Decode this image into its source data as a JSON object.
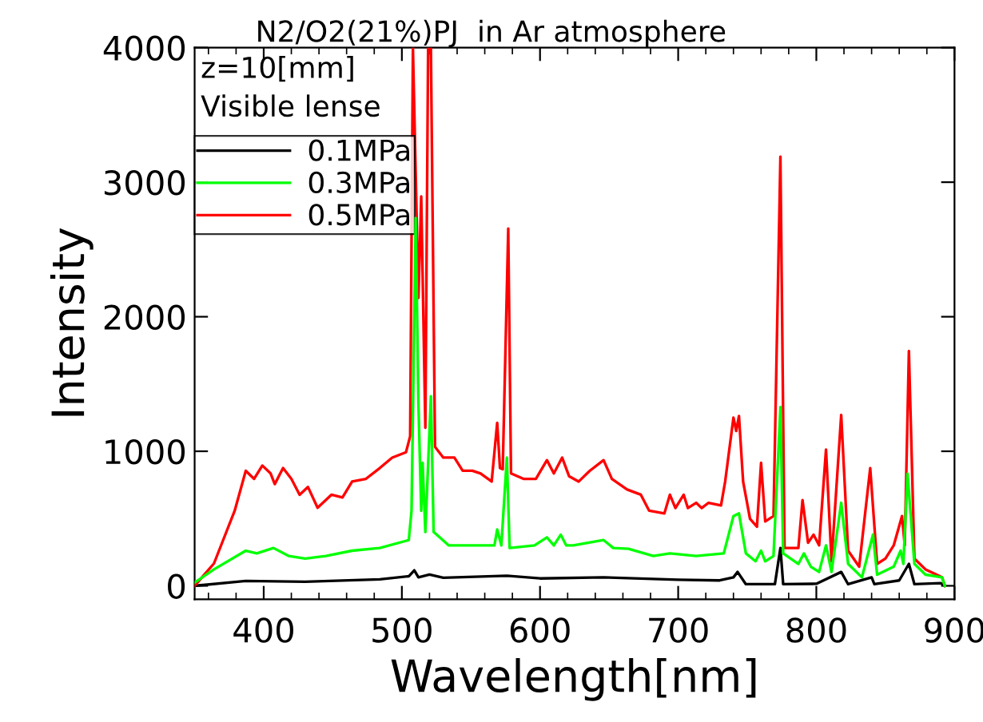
{
  "chart_data": {
    "type": "line",
    "title": "N2/O2(21%)PJ  in Ar atmosphere",
    "xlabel": "Wavelength[nm]",
    "ylabel": "Intensity",
    "annotations": [
      "z=10[mm]",
      "Visible lense"
    ],
    "xlim": [
      350,
      900
    ],
    "ylim": [
      -100,
      4000
    ],
    "xticks": [
      400,
      500,
      600,
      700,
      800,
      900
    ],
    "yticks": [
      0,
      1000,
      2000,
      3000,
      4000
    ],
    "grid": false,
    "legend": "top left",
    "marker": "none",
    "line_style": "solid",
    "series": [
      {
        "name": "0.1MPa",
        "color": "#000000",
        "x": [
          350,
          387,
          430,
          484,
          505,
          509,
          512,
          520,
          530,
          576,
          600,
          646,
          700,
          730,
          740,
          743,
          749,
          770,
          774,
          776,
          800,
          818,
          823,
          840,
          842,
          860,
          867,
          871,
          890,
          893
        ],
        "values": [
          0,
          36,
          30,
          48,
          71,
          115,
          63,
          83,
          60,
          75,
          55,
          63,
          45,
          40,
          63,
          103,
          12,
          12,
          281,
          12,
          15,
          103,
          12,
          63,
          12,
          40,
          163,
          12,
          20,
          0
        ]
      },
      {
        "name": "0.3MPa",
        "color": "#00ff00",
        "x": [
          350,
          364,
          387,
          395,
          407,
          418,
          430,
          445,
          464,
          484,
          505,
          507,
          510,
          512,
          514,
          515,
          517,
          521,
          523,
          534,
          553,
          567,
          569,
          572,
          576,
          578,
          596,
          605,
          610,
          615,
          619,
          624,
          646,
          653,
          664,
          682,
          694,
          713,
          733,
          740,
          744,
          749,
          756,
          760,
          763,
          769,
          774,
          776,
          787,
          791,
          796,
          802,
          807,
          811,
          818,
          823,
          833,
          841,
          844,
          856,
          861,
          863,
          866,
          871,
          879,
          891,
          893
        ],
        "values": [
          24,
          122,
          261,
          241,
          281,
          222,
          202,
          222,
          261,
          281,
          340,
          558,
          2734,
          1350,
          558,
          914,
          400,
          1409,
          400,
          300,
          300,
          300,
          419,
          300,
          953,
          281,
          300,
          360,
          300,
          380,
          300,
          300,
          340,
          281,
          275,
          222,
          241,
          222,
          241,
          518,
          538,
          241,
          182,
          261,
          182,
          222,
          1329,
          241,
          163,
          241,
          142,
          103,
          300,
          103,
          617,
          163,
          63,
          380,
          83,
          142,
          261,
          163,
          835,
          163,
          83,
          63,
          0
        ]
      },
      {
        "name": "0.5MPa",
        "color": "#ff0000",
        "x": [
          350,
          364,
          379,
          387,
          393,
          399,
          405,
          408,
          414,
          420,
          426,
          432,
          439,
          449,
          457,
          464,
          474,
          484,
          493,
          503,
          506,
          508,
          512,
          514,
          517,
          519,
          521,
          524,
          530,
          538,
          544,
          551,
          557,
          565,
          569,
          571,
          573,
          577,
          579,
          588,
          597,
          605,
          610,
          616,
          621,
          628,
          636,
          646,
          652,
          663,
          673,
          679,
          690,
          694,
          698,
          704,
          707,
          713,
          717,
          722,
          731,
          734,
          740,
          742,
          744,
          747,
          752,
          757,
          760,
          763,
          769,
          774,
          777,
          787,
          790,
          794,
          798,
          802,
          807,
          811,
          818,
          823,
          831,
          839,
          844,
          850,
          856,
          862,
          864,
          867,
          871,
          879,
          891,
          893
        ],
        "values": [
          0,
          166,
          558,
          855,
          795,
          894,
          835,
          756,
          875,
          795,
          677,
          735,
          580,
          677,
          656,
          775,
          795,
          875,
          953,
          993,
          1112,
          4000,
          2140,
          2895,
          1175,
          4000,
          4000,
          1033,
          953,
          953,
          855,
          855,
          835,
          775,
          1211,
          875,
          866,
          2655,
          835,
          795,
          795,
          934,
          835,
          953,
          815,
          775,
          855,
          934,
          795,
          716,
          677,
          558,
          538,
          677,
          578,
          677,
          578,
          617,
          578,
          617,
          597,
          775,
          1250,
          1151,
          1262,
          775,
          498,
          439,
          914,
          478,
          518,
          3190,
          281,
          281,
          637,
          320,
          380,
          301,
          1013,
          182,
          1270,
          261,
          142,
          875,
          163,
          202,
          300,
          518,
          300,
          1745,
          202,
          122,
          63,
          0
        ]
      }
    ]
  }
}
